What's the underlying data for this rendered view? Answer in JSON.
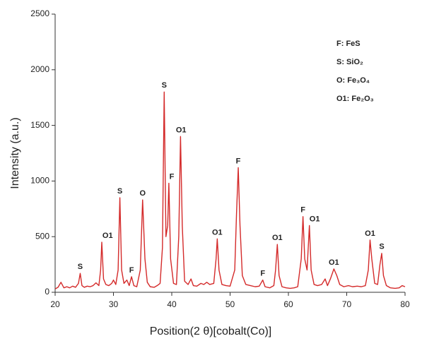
{
  "chart_data": {
    "type": "line",
    "xlabel": "Position(2 θ)[cobalt(Co)]",
    "ylabel": "Intensity (a.u.)",
    "xlim": [
      20,
      80
    ],
    "xticks": [
      20,
      30,
      40,
      50,
      60,
      70,
      80
    ],
    "ylim": [
      0,
      2500
    ],
    "yticks": [
      0,
      500,
      1000,
      1500,
      2000,
      2500
    ],
    "grid": false,
    "legend_items": [
      "F: FeS",
      "S: SiO₂",
      "O: Fe₃O₄",
      "O1: Fe₂O₃"
    ],
    "series": [
      {
        "name": null,
        "color": "#d42a2a",
        "x": [
          20,
          20.5,
          21,
          21.5,
          22,
          22.5,
          23,
          23.5,
          24,
          24.3,
          24.6,
          25,
          25.5,
          26,
          26.5,
          27,
          27.5,
          27.8,
          28,
          28.3,
          28.7,
          29.2,
          29.7,
          30,
          30.4,
          30.8,
          31.1,
          31.4,
          31.8,
          32.3,
          32.7,
          33.1,
          33.5,
          34,
          34.6,
          35,
          35.4,
          35.8,
          36.3,
          37,
          37.5,
          38,
          38.4,
          38.7,
          39,
          39.3,
          39.5,
          39.8,
          40.3,
          40.8,
          41.2,
          41.5,
          41.8,
          42.2,
          42.8,
          43.3,
          43.7,
          44.3,
          45,
          45.5,
          46,
          46.5,
          47.2,
          47.6,
          47.8,
          48.1,
          48.6,
          49.3,
          50,
          50.8,
          51.1,
          51.4,
          51.7,
          52.1,
          52.7,
          53.5,
          54.3,
          55,
          55.6,
          56,
          56.8,
          57.5,
          57.8,
          58.1,
          58.4,
          58.9,
          59.6,
          60.3,
          61,
          61.6,
          62.2,
          62.5,
          62.8,
          63.2,
          63.6,
          63.9,
          64.4,
          65,
          65.7,
          66.3,
          66.7,
          67.2,
          67.8,
          68.3,
          68.8,
          69.5,
          70.3,
          71,
          71.8,
          72.5,
          73.2,
          73.7,
          74,
          74.3,
          74.8,
          75.3,
          75.7,
          76,
          76.3,
          76.8,
          77.5,
          78.3,
          79,
          79.5,
          80
        ],
        "values": [
          30,
          45,
          90,
          40,
          50,
          40,
          55,
          45,
          80,
          170,
          60,
          45,
          55,
          50,
          60,
          85,
          60,
          200,
          450,
          120,
          70,
          60,
          80,
          110,
          70,
          200,
          850,
          200,
          80,
          110,
          60,
          140,
          60,
          50,
          200,
          830,
          300,
          90,
          50,
          45,
          60,
          80,
          400,
          1800,
          500,
          600,
          980,
          300,
          80,
          70,
          500,
          1400,
          600,
          100,
          70,
          120,
          60,
          55,
          80,
          70,
          90,
          70,
          80,
          300,
          480,
          200,
          70,
          60,
          55,
          200,
          700,
          1120,
          600,
          150,
          70,
          60,
          50,
          55,
          110,
          50,
          40,
          60,
          200,
          430,
          150,
          50,
          40,
          35,
          40,
          50,
          300,
          680,
          300,
          200,
          600,
          200,
          70,
          60,
          70,
          120,
          60,
          120,
          210,
          150,
          70,
          50,
          60,
          50,
          55,
          50,
          60,
          200,
          470,
          300,
          80,
          70,
          250,
          350,
          150,
          60,
          40,
          35,
          40,
          60,
          50
        ]
      }
    ],
    "annotations": [
      {
        "text": "S",
        "x": 24.3,
        "y": 170
      },
      {
        "text": "O1",
        "x": 29,
        "y": 450
      },
      {
        "text": "F",
        "x": 33.1,
        "y": 140
      },
      {
        "text": "S",
        "x": 31.1,
        "y": 850
      },
      {
        "text": "O",
        "x": 35,
        "y": 830
      },
      {
        "text": "S",
        "x": 38.7,
        "y": 1800
      },
      {
        "text": "F",
        "x": 40,
        "y": 980
      },
      {
        "text": "O1",
        "x": 41.6,
        "y": 1400
      },
      {
        "text": "O1",
        "x": 47.8,
        "y": 480
      },
      {
        "text": "F",
        "x": 51.4,
        "y": 1120
      },
      {
        "text": "F",
        "x": 55.6,
        "y": 110
      },
      {
        "text": "O1",
        "x": 58.1,
        "y": 430
      },
      {
        "text": "F",
        "x": 62.5,
        "y": 680
      },
      {
        "text": "O1",
        "x": 64.5,
        "y": 600
      },
      {
        "text": "O1",
        "x": 67.8,
        "y": 210
      },
      {
        "text": "O1",
        "x": 74,
        "y": 470
      },
      {
        "text": "S",
        "x": 76,
        "y": 350
      }
    ]
  }
}
